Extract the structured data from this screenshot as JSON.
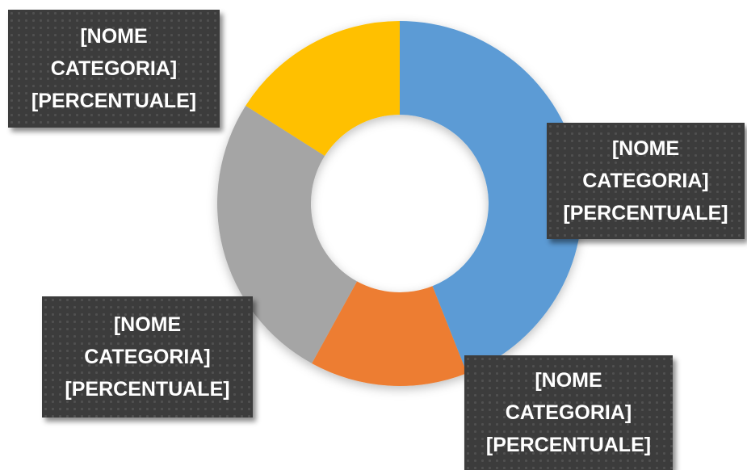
{
  "chart_data": {
    "type": "donut",
    "categories": [
      "[NOME CATEGORIA]",
      "[NOME CATEGORIA]",
      "[NOME CATEGORIA]",
      "[NOME CATEGORIA]"
    ],
    "values": [
      44,
      14,
      26,
      16
    ],
    "value_labels": [
      "[PERCENTUALE]",
      "[PERCENTUALE]",
      "[PERCENTUALE]",
      "[PERCENTUALE]"
    ],
    "colors": [
      "#5b9bd5",
      "#ed7d31",
      "#a5a5a5",
      "#ffc000"
    ]
  }
}
